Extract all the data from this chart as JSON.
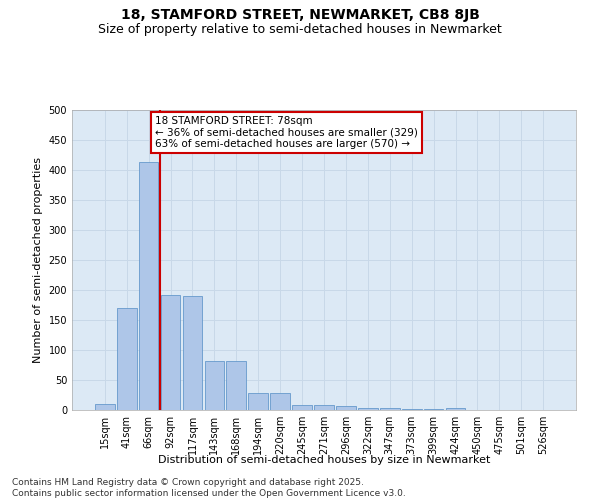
{
  "title": "18, STAMFORD STREET, NEWMARKET, CB8 8JB",
  "subtitle": "Size of property relative to semi-detached houses in Newmarket",
  "xlabel": "Distribution of semi-detached houses by size in Newmarket",
  "ylabel": "Number of semi-detached properties",
  "categories": [
    "15sqm",
    "41sqm",
    "66sqm",
    "92sqm",
    "117sqm",
    "143sqm",
    "168sqm",
    "194sqm",
    "220sqm",
    "245sqm",
    "271sqm",
    "296sqm",
    "322sqm",
    "347sqm",
    "373sqm",
    "399sqm",
    "424sqm",
    "450sqm",
    "475sqm",
    "501sqm",
    "526sqm"
  ],
  "bar_heights": [
    10,
    170,
    413,
    192,
    190,
    82,
    82,
    29,
    29,
    9,
    9,
    6,
    4,
    4,
    2,
    2,
    3,
    0,
    0,
    0,
    0
  ],
  "bar_color": "#aec6e8",
  "bar_edge_color": "#6699cc",
  "vline_color": "#cc0000",
  "vline_x": 2.5,
  "annotation_text": "18 STAMFORD STREET: 78sqm\n← 36% of semi-detached houses are smaller (329)\n63% of semi-detached houses are larger (570) →",
  "annotation_box_color": "#ffffff",
  "annotation_box_edge": "#cc0000",
  "ylim": [
    0,
    500
  ],
  "yticks": [
    0,
    50,
    100,
    150,
    200,
    250,
    300,
    350,
    400,
    450,
    500
  ],
  "grid_color": "#c8d8e8",
  "background_color": "#dce9f5",
  "footer": "Contains HM Land Registry data © Crown copyright and database right 2025.\nContains public sector information licensed under the Open Government Licence v3.0.",
  "title_fontsize": 10,
  "subtitle_fontsize": 9,
  "axis_label_fontsize": 8,
  "tick_fontsize": 7,
  "annotation_fontsize": 7.5,
  "footer_fontsize": 6.5
}
